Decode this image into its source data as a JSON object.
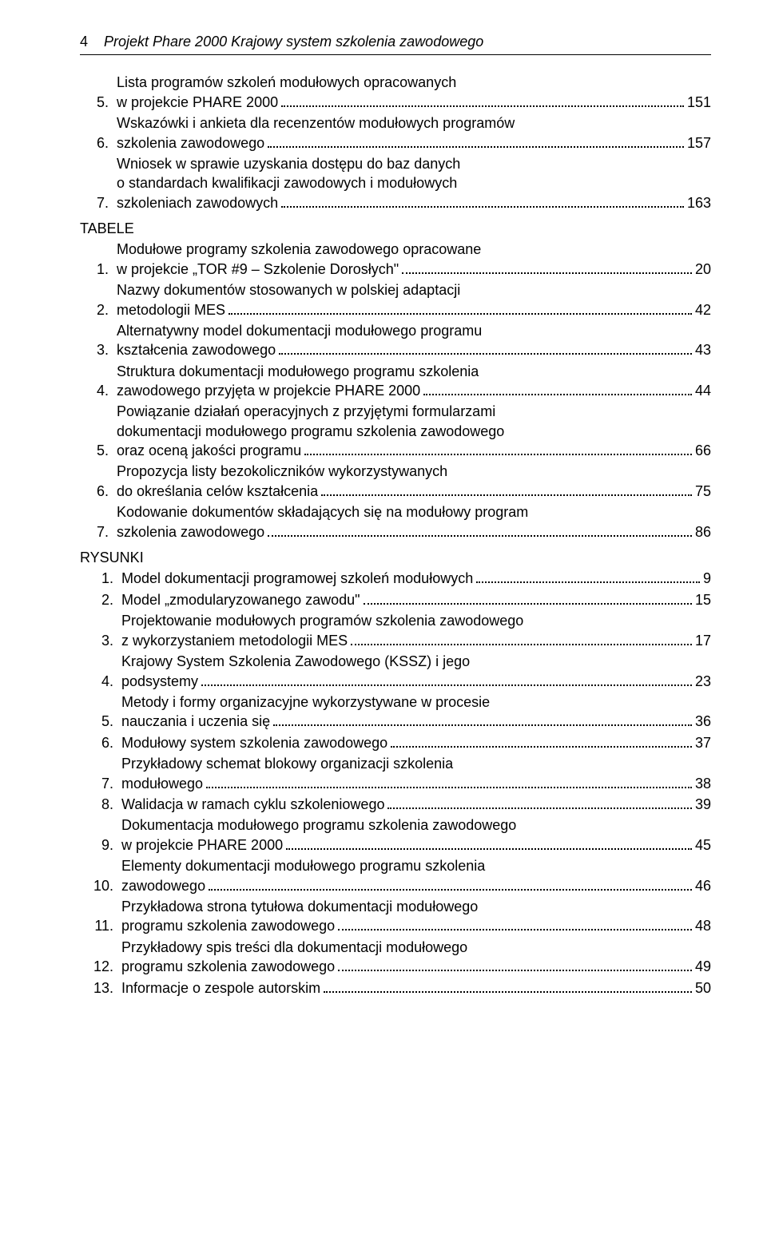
{
  "header": {
    "page_number": "4",
    "doc_title": "Projekt Phare 2000 Krajowy system szkolenia zawodowego"
  },
  "sections": [
    {
      "label": null,
      "num_wide": false,
      "items": [
        {
          "num": "5.",
          "lines": [
            "Lista programów szkoleń modułowych opracowanych"
          ],
          "last": "w projekcie PHARE 2000",
          "page": "151"
        },
        {
          "num": "6.",
          "lines": [
            "Wskazówki i ankieta dla recenzentów modułowych programów"
          ],
          "last": "szkolenia zawodowego",
          "page": "157"
        },
        {
          "num": "7.",
          "lines": [
            "Wniosek w sprawie uzyskania dostępu do baz danych",
            "o standardach kwalifikacji zawodowych i modułowych"
          ],
          "last": "szkoleniach zawodowych",
          "page": "163"
        }
      ]
    },
    {
      "label": "TABELE",
      "num_wide": false,
      "items": [
        {
          "num": "1.",
          "lines": [
            "Modułowe programy szkolenia zawodowego opracowane"
          ],
          "last": "w projekcie „TOR #9 – Szkolenie Dorosłych\"",
          "page": "20"
        },
        {
          "num": "2.",
          "lines": [
            "Nazwy dokumentów stosowanych w polskiej adaptacji"
          ],
          "last": "metodologii MES",
          "page": "42"
        },
        {
          "num": "3.",
          "lines": [
            "Alternatywny model dokumentacji modułowego programu"
          ],
          "last": "kształcenia zawodowego",
          "page": "43"
        },
        {
          "num": "4.",
          "lines": [
            "Struktura dokumentacji modułowego programu szkolenia"
          ],
          "last": "zawodowego przyjęta w projekcie PHARE 2000",
          "page": "44"
        },
        {
          "num": "5.",
          "lines": [
            "Powiązanie działań operacyjnych z przyjętymi formularzami",
            "dokumentacji modułowego programu szkolenia zawodowego"
          ],
          "last": "oraz oceną jakości programu",
          "page": "66"
        },
        {
          "num": "6.",
          "lines": [
            "Propozycja listy bezokoliczników wykorzystywanych"
          ],
          "last": "do określania celów kształcenia",
          "page": "75"
        },
        {
          "num": "7.",
          "lines": [
            "Kodowanie dokumentów składających się na modułowy program"
          ],
          "last": "szkolenia zawodowego",
          "page": "86"
        }
      ]
    },
    {
      "label": "RYSUNKI",
      "num_wide": true,
      "items": [
        {
          "num": "1.",
          "lines": [],
          "last": "Model dokumentacji programowej szkoleń modułowych",
          "page": "9"
        },
        {
          "num": "2.",
          "lines": [],
          "last": "Model „zmodularyzowanego zawodu\"",
          "page": "15"
        },
        {
          "num": "3.",
          "lines": [
            "Projektowanie modułowych programów szkolenia zawodowego"
          ],
          "last": "z wykorzystaniem metodologii MES",
          "page": "17"
        },
        {
          "num": "4.",
          "lines": [
            "Krajowy System Szkolenia Zawodowego (KSSZ) i jego"
          ],
          "last": "podsystemy",
          "page": "23"
        },
        {
          "num": "5.",
          "lines": [
            "Metody i formy organizacyjne wykorzystywane w procesie"
          ],
          "last": "nauczania i uczenia się",
          "page": "36"
        },
        {
          "num": "6.",
          "lines": [],
          "last": "Modułowy system szkolenia zawodowego",
          "page": "37"
        },
        {
          "num": "7.",
          "lines": [
            "Przykładowy schemat blokowy organizacji szkolenia"
          ],
          "last": "modułowego",
          "page": "38"
        },
        {
          "num": "8.",
          "lines": [],
          "last": "Walidacja w ramach cyklu szkoleniowego",
          "page": "39"
        },
        {
          "num": "9.",
          "lines": [
            "Dokumentacja modułowego programu szkolenia zawodowego"
          ],
          "last": "w projekcie PHARE 2000",
          "page": "45"
        },
        {
          "num": "10.",
          "lines": [
            "Elementy dokumentacji modułowego programu szkolenia"
          ],
          "last": "zawodowego",
          "page": "46"
        },
        {
          "num": "11.",
          "lines": [
            "Przykładowa strona tytułowa dokumentacji modułowego"
          ],
          "last": "programu szkolenia zawodowego",
          "page": "48"
        },
        {
          "num": "12.",
          "lines": [
            "Przykładowy spis treści dla dokumentacji modułowego"
          ],
          "last": "programu szkolenia zawodowego",
          "page": "49"
        },
        {
          "num": "13.",
          "lines": [],
          "last": "Informacje o zespole autorskim",
          "page": "50"
        }
      ]
    }
  ]
}
